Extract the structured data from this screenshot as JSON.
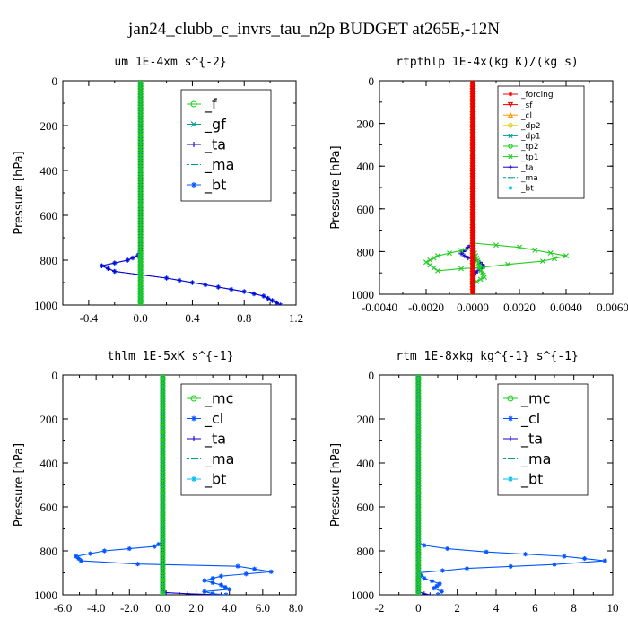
{
  "figure_title": "jan24_clubb_c_invrs_tau_n2p  BUDGET at265E,-12N",
  "colors": {
    "green": "#22cc22",
    "blue": "#0055ff",
    "cyan": "#00bbee",
    "navy": "#1100cc",
    "red": "#ee0000",
    "orange": "#ff9900",
    "yellow": "#ddcc00",
    "teal": "#009999"
  },
  "chart_data": [
    {
      "type": "line",
      "title": "um  1E-4xm s^{-2}",
      "ylabel": "Pressure [hPa]",
      "xlim": [
        -0.6,
        1.2
      ],
      "ylim": [
        1000,
        0
      ],
      "xticks": [
        -0.4,
        0.0,
        0.4,
        0.8,
        1.2
      ],
      "xtick_labels": [
        "-0.4",
        "0.0",
        "0.4",
        "0.8",
        "1.2"
      ],
      "yticks": [
        0,
        200,
        400,
        600,
        800,
        1000
      ],
      "ytick_labels": [
        "0",
        "200",
        "400",
        "600",
        "800",
        "1000"
      ],
      "legend": {
        "position": "top-right",
        "size": "large"
      },
      "series": [
        {
          "name": "_f",
          "color": "green",
          "marker": "o",
          "x": [
            0,
            0
          ],
          "y": [
            0,
            1000
          ]
        },
        {
          "name": "_gf",
          "color": "teal",
          "marker": "x",
          "x": [
            0,
            0
          ],
          "y": [
            0,
            1000
          ]
        },
        {
          "name": "_ta",
          "color": "navy",
          "marker": "+",
          "x": [
            0,
            0,
            -0.02,
            -0.1,
            -0.3,
            -0.2,
            0,
            0.2,
            0.4,
            0.6,
            0.8,
            0.95,
            1.05,
            1.08
          ],
          "y": [
            0,
            760,
            780,
            800,
            825,
            850,
            865,
            880,
            900,
            920,
            940,
            960,
            990,
            1000
          ]
        },
        {
          "name": "_ma",
          "color": "teal",
          "marker": "-",
          "x": [
            0,
            0
          ],
          "y": [
            0,
            1000
          ]
        },
        {
          "name": "_bt",
          "color": "blue",
          "marker": "*",
          "x": [
            0,
            0,
            -0.02,
            -0.1,
            -0.3,
            -0.2,
            0,
            0.2,
            0.4,
            0.6,
            0.8,
            0.95,
            1.05,
            1.08
          ],
          "y": [
            0,
            760,
            780,
            800,
            825,
            850,
            865,
            880,
            900,
            920,
            940,
            960,
            990,
            1000
          ]
        }
      ]
    },
    {
      "type": "line",
      "title": "rtpthlp  1E-4x(kg K)/(kg s)",
      "ylabel": "Pressure [hPa]",
      "xlim": [
        -0.004,
        0.006
      ],
      "ylim": [
        1000,
        0
      ],
      "xticks": [
        -0.004,
        -0.002,
        0.0,
        0.002,
        0.004,
        0.006
      ],
      "xtick_labels": [
        "-0.0040",
        "-0.0020",
        "0.0000",
        "0.0020",
        "0.0040",
        "0.0060"
      ],
      "yticks": [
        0,
        200,
        400,
        600,
        800,
        1000
      ],
      "ytick_labels": [
        "0",
        "200",
        "400",
        "600",
        "800",
        "1000"
      ],
      "legend": {
        "position": "top-right",
        "size": "small"
      },
      "series": [
        {
          "name": "_forcing",
          "color": "red",
          "marker": "*",
          "x": [
            0,
            0
          ],
          "y": [
            0,
            1000
          ]
        },
        {
          "name": "_sf",
          "color": "red",
          "marker": "v",
          "x": [
            0,
            0
          ],
          "y": [
            0,
            1000
          ]
        },
        {
          "name": "_cl",
          "color": "orange",
          "marker": "^",
          "x": [
            0,
            0
          ],
          "y": [
            0,
            1000
          ]
        },
        {
          "name": "_dp2",
          "color": "yellow",
          "marker": "o",
          "x": [
            0,
            0
          ],
          "y": [
            0,
            1000
          ]
        },
        {
          "name": "_dp1",
          "color": "teal",
          "marker": "x",
          "x": [
            0,
            0
          ],
          "y": [
            0,
            1000
          ]
        },
        {
          "name": "_tp2",
          "color": "green",
          "marker": "o",
          "x": [
            0,
            0
          ],
          "y": [
            0,
            1000
          ]
        },
        {
          "name": "_tp1",
          "color": "green",
          "marker": "x",
          "x": [
            0,
            0,
            0.002,
            0.004,
            0.003,
            0.0015,
            0.0003,
            -0.0005,
            -0.0015,
            -0.002,
            -0.0015,
            -0.0005,
            0,
            0.0004,
            0.0005,
            0,
            0
          ],
          "y": [
            0,
            760,
            780,
            820,
            845,
            860,
            875,
            880,
            890,
            850,
            820,
            795,
            785,
            900,
            920,
            950,
            1000
          ]
        },
        {
          "name": "_ta",
          "color": "navy",
          "marker": "+",
          "x": [
            0,
            0,
            -0.0003,
            -0.0005,
            -0.0002,
            0.0003,
            0.0005,
            0.0002,
            0,
            0
          ],
          "y": [
            0,
            760,
            790,
            810,
            830,
            850,
            870,
            890,
            920,
            1000
          ]
        },
        {
          "name": "_ma",
          "color": "teal",
          "marker": "-",
          "x": [
            0,
            0
          ],
          "y": [
            0,
            1000
          ]
        },
        {
          "name": "_bt",
          "color": "cyan",
          "marker": "*",
          "x": [
            0,
            0
          ],
          "y": [
            0,
            1000
          ]
        }
      ]
    },
    {
      "type": "line",
      "title": "thlm  1E-5xK s^{-1}",
      "ylabel": "Pressure [hPa]",
      "xlim": [
        -6.0,
        8.0
      ],
      "ylim": [
        1000,
        0
      ],
      "xticks": [
        -6,
        -4,
        -2,
        0,
        2,
        4,
        6,
        8
      ],
      "xtick_labels": [
        "-6.0",
        "-4.0",
        "-2.0",
        "0.0",
        "2.0",
        "4.0",
        "6.0",
        "8.0"
      ],
      "yticks": [
        0,
        200,
        400,
        600,
        800,
        1000
      ],
      "ytick_labels": [
        "0",
        "200",
        "400",
        "600",
        "800",
        "1000"
      ],
      "legend": {
        "position": "top-right",
        "size": "large"
      },
      "series": [
        {
          "name": "_mc",
          "color": "green",
          "marker": "o",
          "x": [
            0,
            0
          ],
          "y": [
            0,
            1000
          ]
        },
        {
          "name": "_cl",
          "color": "blue",
          "marker": "*",
          "x": [
            0,
            0,
            -0.5,
            -3.5,
            -5.2,
            -4.9,
            -1.5,
            4.5,
            6.5,
            3.5,
            2.5,
            3.5,
            4,
            2.5,
            3,
            3.8
          ],
          "y": [
            0,
            760,
            780,
            800,
            825,
            845,
            860,
            870,
            895,
            915,
            935,
            955,
            975,
            985,
            995,
            1000
          ]
        },
        {
          "name": "_ta",
          "color": "navy",
          "marker": "+",
          "x": [
            0,
            0,
            0.2,
            1.5,
            3.5
          ],
          "y": [
            0,
            980,
            990,
            995,
            1000
          ]
        },
        {
          "name": "_ma",
          "color": "teal",
          "marker": "-",
          "x": [
            0,
            0
          ],
          "y": [
            0,
            1000
          ]
        },
        {
          "name": "_bt",
          "color": "cyan",
          "marker": "*",
          "x": [
            0,
            0
          ],
          "y": [
            0,
            1000
          ]
        }
      ]
    },
    {
      "type": "line",
      "title": "rtm  1E-8xkg kg^{-1} s^{-1}",
      "ylabel": "Pressure [hPa]",
      "xlim": [
        -2,
        10
      ],
      "ylim": [
        1000,
        0
      ],
      "xticks": [
        -2,
        0,
        2,
        4,
        6,
        8,
        10
      ],
      "xtick_labels": [
        "-2",
        "0",
        "2",
        "4",
        "6",
        "8",
        "10"
      ],
      "yticks": [
        0,
        200,
        400,
        600,
        800,
        1000
      ],
      "ytick_labels": [
        "0",
        "200",
        "400",
        "600",
        "800",
        "1000"
      ],
      "legend": {
        "position": "top-right",
        "size": "large"
      },
      "series": [
        {
          "name": "_mc",
          "color": "green",
          "marker": "o",
          "x": [
            0,
            0
          ],
          "y": [
            0,
            1000
          ]
        },
        {
          "name": "_cl",
          "color": "blue",
          "marker": "*",
          "x": [
            0,
            0,
            0.3,
            1.5,
            3.5,
            7.5,
            9.6,
            7.0,
            2.5,
            0,
            0.3,
            1.1,
            0.8,
            1.2,
            1
          ],
          "y": [
            0,
            760,
            775,
            790,
            805,
            825,
            845,
            862,
            880,
            900,
            925,
            950,
            970,
            985,
            1000
          ]
        },
        {
          "name": "_ta",
          "color": "navy",
          "marker": "+",
          "x": [
            0,
            0,
            0.3,
            0.6
          ],
          "y": [
            0,
            985,
            995,
            1000
          ]
        },
        {
          "name": "_ma",
          "color": "teal",
          "marker": "-",
          "x": [
            0,
            0
          ],
          "y": [
            0,
            1000
          ]
        },
        {
          "name": "_bt",
          "color": "cyan",
          "marker": "*",
          "x": [
            0,
            0
          ],
          "y": [
            0,
            1000
          ]
        }
      ]
    }
  ]
}
